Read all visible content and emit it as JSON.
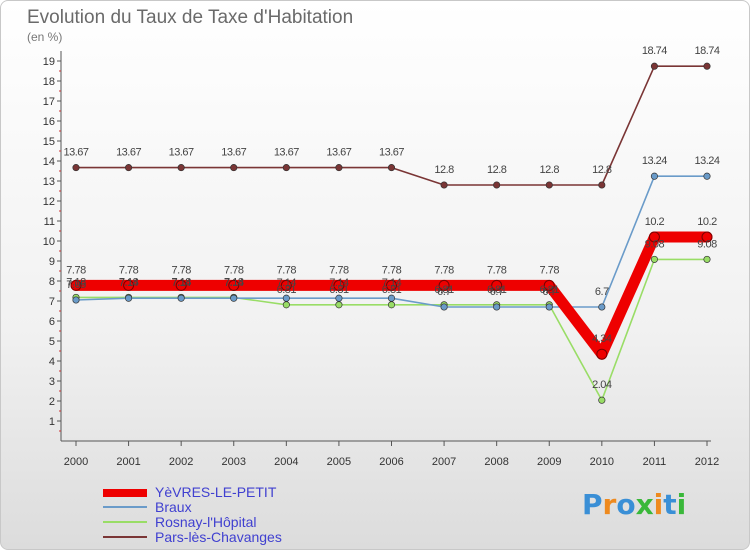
{
  "chart_data": {
    "type": "line",
    "title": "Evolution du Taux de Taxe d'Habitation",
    "subtitle": "(en %)",
    "xlabel": "",
    "ylabel": "",
    "x": [
      "2000",
      "2001",
      "2002",
      "2003",
      "2004",
      "2005",
      "2006",
      "2007",
      "2008",
      "2009",
      "2010",
      "2011",
      "2012"
    ],
    "ylim": [
      0,
      19
    ],
    "yticks": [
      1,
      2,
      3,
      4,
      5,
      6,
      7,
      8,
      9,
      10,
      11,
      12,
      13,
      14,
      15,
      16,
      17,
      18,
      19
    ],
    "series": [
      {
        "name": "YèVRES-LE-PETIT",
        "color": "#ee0000",
        "values": [
          7.78,
          7.78,
          7.78,
          7.78,
          7.78,
          7.78,
          7.78,
          7.78,
          7.78,
          7.78,
          4.34,
          10.2,
          10.2
        ],
        "labels": [
          "7.78",
          "7.78",
          "7.78",
          "7.78",
          "7.78",
          "7.78",
          "7.78",
          "7.78",
          "7.78",
          "7.78",
          "4.34",
          "10.2",
          "10.2"
        ]
      },
      {
        "name": "Braux",
        "color": "#6a9bc9",
        "values": [
          7.05,
          7.14,
          7.14,
          7.14,
          7.14,
          7.14,
          7.14,
          6.7,
          6.7,
          6.7,
          6.7,
          13.24,
          13.24
        ],
        "labels": [
          "7.05",
          "7.14",
          "7.14",
          "7.14",
          "7.14",
          "7.14",
          "7.14",
          "6.7",
          "6.7",
          "6.7",
          "6.7",
          "13.24",
          "13.24"
        ]
      },
      {
        "name": "Rosnay-l'Hôpital",
        "color": "#99dd66",
        "values": [
          7.18,
          7.18,
          7.18,
          7.18,
          6.81,
          6.81,
          6.81,
          6.81,
          6.81,
          6.81,
          2.04,
          9.08,
          9.08
        ],
        "labels": [
          "7.18",
          "7.18",
          "7.18",
          "7.18",
          "6.81",
          "6.81",
          "6.81",
          "6.81",
          "6.81",
          "6.81",
          "2.04",
          "9.08",
          "9.08"
        ]
      },
      {
        "name": "Pars-lès-Chavanges",
        "color": "#7a3535",
        "values": [
          13.67,
          13.67,
          13.67,
          13.67,
          13.67,
          13.67,
          13.67,
          12.8,
          12.8,
          12.8,
          12.8,
          18.74,
          18.74
        ],
        "labels": [
          "13.67",
          "13.67",
          "13.67",
          "13.67",
          "13.67",
          "13.67",
          "13.67",
          "12.8",
          "12.8",
          "12.8",
          "12.8",
          "18.74",
          "18.74"
        ]
      }
    ],
    "legend_position": "bottom-left",
    "grid": false
  },
  "brand": {
    "letters": [
      {
        "ch": "P",
        "color": "#3a8fd6"
      },
      {
        "ch": "r",
        "color": "#ee8a1f"
      },
      {
        "ch": "o",
        "color": "#3a8fd6"
      },
      {
        "ch": "x",
        "color": "#3ab83a"
      },
      {
        "ch": "i",
        "color": "#ee8a1f"
      },
      {
        "ch": "t",
        "color": "#3a8fd6"
      },
      {
        "ch": "i",
        "color": "#3ab83a"
      }
    ]
  }
}
